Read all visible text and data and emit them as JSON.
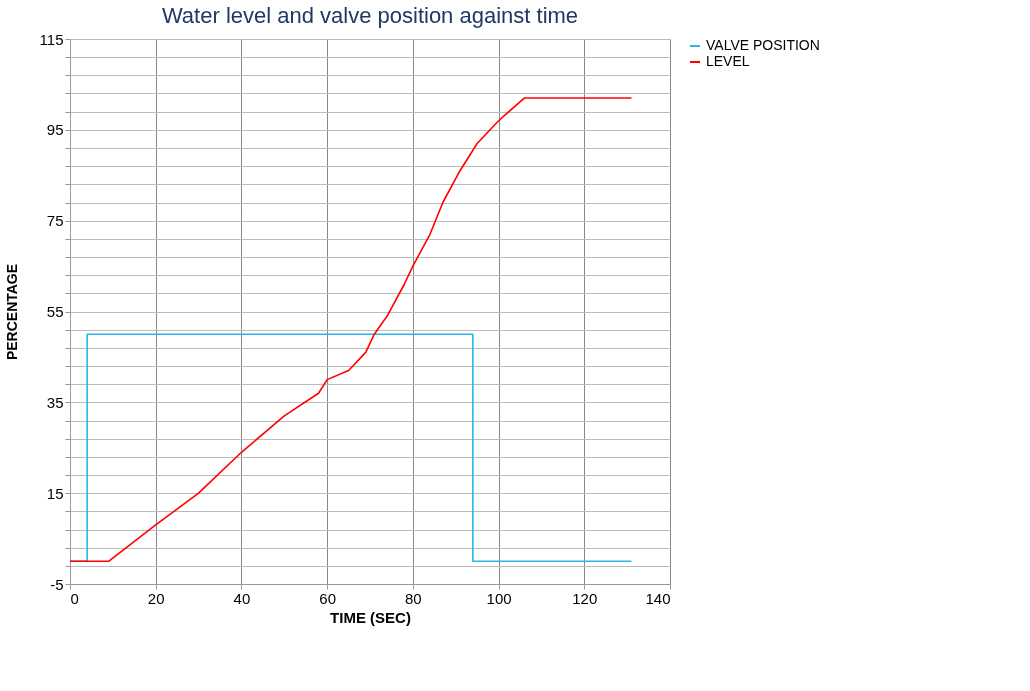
{
  "chart_data": {
    "type": "line",
    "title": "Water level and valve position against time",
    "xlabel": "TIME (SEC)",
    "ylabel": "PERCENTAGE",
    "xlim": [
      0,
      140
    ],
    "xticks": [
      0,
      20,
      40,
      60,
      80,
      100,
      120,
      140
    ],
    "ylim": [
      -5,
      115
    ],
    "yticks": [
      -5,
      {
        "value": -1,
        "label": null
      },
      {
        "value": 3,
        "label": null
      },
      {
        "value": 7,
        "label": null
      },
      {
        "value": 11,
        "label": null
      },
      15,
      {
        "value": 19,
        "label": null
      },
      {
        "value": 23,
        "label": null
      },
      {
        "value": 27,
        "label": null
      },
      {
        "value": 31,
        "label": null
      },
      35,
      {
        "value": 39,
        "label": null
      },
      {
        "value": 43,
        "label": null
      },
      {
        "value": 47,
        "label": null
      },
      {
        "value": 51,
        "label": null
      },
      55,
      {
        "value": 59,
        "label": null
      },
      {
        "value": 63,
        "label": null
      },
      {
        "value": 67,
        "label": null
      },
      {
        "value": 71,
        "label": null
      },
      75,
      {
        "value": 79,
        "label": null
      },
      {
        "value": 83,
        "label": null
      },
      {
        "value": 87,
        "label": null
      },
      {
        "value": 91,
        "label": null
      },
      95,
      {
        "value": 99,
        "label": null
      },
      {
        "value": 103,
        "label": null
      },
      {
        "value": 107,
        "label": null
      },
      {
        "value": 111,
        "label": null
      },
      115
    ],
    "grid": true,
    "legend": "right",
    "marker": "none",
    "line_style": "solid",
    "series": [
      {
        "name": "VALVE POSITION",
        "color": "#29b6e8",
        "x": [
          0,
          4,
          4,
          94,
          94,
          131
        ],
        "values": [
          0,
          0,
          50,
          50,
          0,
          0
        ]
      },
      {
        "name": "LEVEL",
        "color": "#ff0000",
        "x": [
          0,
          9,
          20,
          30,
          40,
          50,
          58,
          60,
          65,
          69,
          71,
          74,
          78,
          80,
          84,
          87,
          91,
          95,
          100,
          106,
          131
        ],
        "values": [
          0,
          0,
          8,
          15,
          24,
          32,
          37,
          40,
          42,
          46,
          50,
          54,
          61,
          65,
          72,
          79,
          86,
          92,
          97,
          102,
          102
        ]
      }
    ]
  }
}
